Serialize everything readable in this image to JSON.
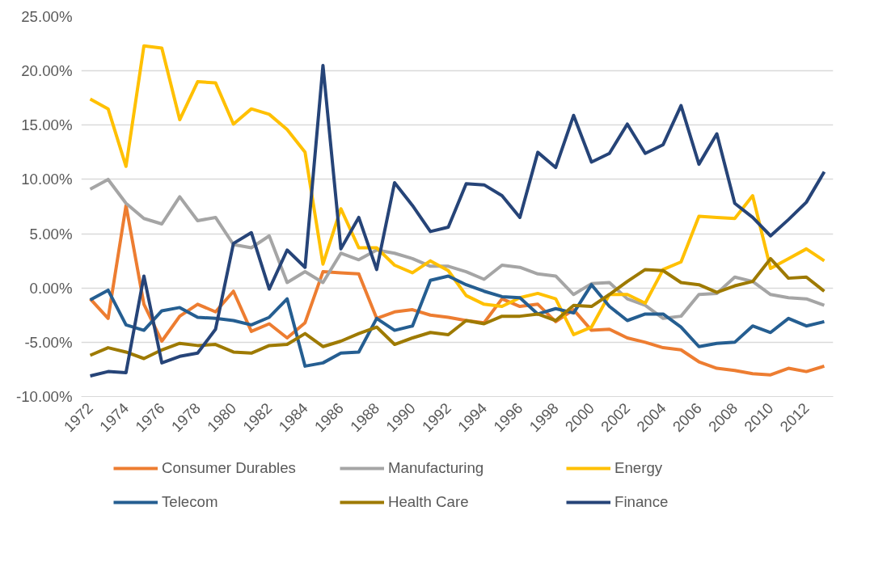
{
  "chart_data": {
    "type": "line",
    "x": [
      1972,
      1973,
      1974,
      1975,
      1976,
      1977,
      1978,
      1979,
      1980,
      1981,
      1982,
      1983,
      1984,
      1985,
      1986,
      1987,
      1988,
      1989,
      1990,
      1991,
      1992,
      1993,
      1994,
      1995,
      1996,
      1997,
      1998,
      1999,
      2000,
      2001,
      2002,
      2003,
      2004,
      2005,
      2006,
      2007,
      2008,
      2009,
      2010,
      2011,
      2012,
      2013
    ],
    "series": [
      {
        "name": "Consumer Durables",
        "color": "#ed7d31",
        "values": [
          -1.0,
          -2.8,
          7.6,
          -1.5,
          -4.9,
          -2.6,
          -1.5,
          -2.2,
          -0.3,
          -4.0,
          -3.3,
          -4.6,
          -3.2,
          1.5,
          1.4,
          1.3,
          -2.8,
          -2.2,
          -2.0,
          -2.5,
          -2.7,
          -3.0,
          -3.2,
          -1.0,
          -1.7,
          -1.5,
          -3.1,
          -2.0,
          -3.9,
          -3.8,
          -4.6,
          -5.0,
          -5.5,
          -5.7,
          -6.8,
          -7.4,
          -7.6,
          -7.9,
          -8.0,
          -7.4,
          -7.7,
          -7.2
        ]
      },
      {
        "name": "Manufacturing",
        "color": "#a5a5a5",
        "values": [
          9.1,
          10.0,
          7.8,
          6.4,
          5.9,
          8.4,
          6.2,
          6.5,
          4.0,
          3.7,
          4.8,
          0.5,
          1.5,
          0.5,
          3.2,
          2.6,
          3.5,
          3.2,
          2.7,
          2.0,
          2.0,
          1.5,
          0.8,
          2.1,
          1.9,
          1.3,
          1.1,
          -0.6,
          0.4,
          0.5,
          -1.0,
          -1.6,
          -2.8,
          -2.6,
          -0.6,
          -0.5,
          1.0,
          0.6,
          -0.6,
          -0.9,
          -1.0,
          -1.6
        ]
      },
      {
        "name": "Energy",
        "color": "#ffc000",
        "values": [
          17.4,
          16.5,
          11.2,
          22.3,
          22.1,
          15.5,
          19.0,
          18.9,
          15.1,
          16.5,
          16.0,
          14.6,
          12.5,
          2.2,
          7.3,
          3.7,
          3.7,
          2.1,
          1.4,
          2.5,
          1.6,
          -0.7,
          -1.5,
          -1.7,
          -0.9,
          -0.5,
          -1.0,
          -4.3,
          -3.6,
          -0.6,
          -0.6,
          -1.4,
          1.7,
          2.4,
          6.6,
          6.5,
          6.4,
          8.5,
          1.8,
          2.7,
          3.6,
          2.5
        ]
      },
      {
        "name": "Telecom",
        "color": "#255e91",
        "values": [
          -1.1,
          -0.2,
          -3.4,
          -3.9,
          -2.1,
          -1.8,
          -2.7,
          -2.8,
          -3.0,
          -3.4,
          -2.7,
          -1.0,
          -7.2,
          -6.9,
          -6.0,
          -5.9,
          -2.8,
          -3.9,
          -3.5,
          0.7,
          1.1,
          0.3,
          -0.3,
          -0.8,
          -0.9,
          -2.4,
          -1.9,
          -2.3,
          0.3,
          -1.7,
          -3.0,
          -2.4,
          -2.4,
          -3.6,
          -5.4,
          -5.1,
          -5.0,
          -3.5,
          -4.1,
          -2.8,
          -3.5,
          -3.1
        ]
      },
      {
        "name": "Health Care",
        "color": "#9e7a00",
        "values": [
          -6.2,
          -5.5,
          -5.9,
          -6.5,
          -5.7,
          -5.1,
          -5.3,
          -5.2,
          -5.9,
          -6.0,
          -5.3,
          -5.2,
          -4.2,
          -5.4,
          -4.9,
          -4.2,
          -3.6,
          -5.2,
          -4.6,
          -4.1,
          -4.3,
          -3.0,
          -3.3,
          -2.6,
          -2.6,
          -2.4,
          -3.0,
          -1.6,
          -1.7,
          -0.6,
          0.6,
          1.7,
          1.6,
          0.5,
          0.3,
          -0.4,
          0.2,
          0.6,
          2.7,
          0.9,
          1.0,
          -0.3
        ]
      },
      {
        "name": "Finance",
        "color": "#264478",
        "values": [
          -8.1,
          -7.7,
          -7.8,
          1.1,
          -6.9,
          -6.3,
          -6.0,
          -3.8,
          4.1,
          5.1,
          -0.1,
          3.5,
          1.9,
          20.5,
          3.6,
          6.5,
          1.7,
          9.7,
          7.6,
          5.2,
          5.6,
          9.6,
          9.5,
          8.5,
          6.5,
          12.5,
          11.1,
          15.9,
          11.6,
          12.4,
          15.1,
          12.4,
          13.2,
          16.8,
          11.4,
          14.2,
          7.8,
          6.5,
          4.8,
          6.3,
          7.9,
          10.7
        ]
      }
    ],
    "xlim": [
      1971.5,
      2013.5
    ],
    "xticks": [
      1972,
      1974,
      1976,
      1978,
      1980,
      1982,
      1984,
      1986,
      1988,
      1990,
      1992,
      1994,
      1996,
      1998,
      2000,
      2002,
      2004,
      2006,
      2008,
      2010,
      2012
    ],
    "ylim": [
      -10,
      25
    ],
    "yticks": [
      {
        "value": -10,
        "label": "-10.00%"
      },
      {
        "value": -5,
        "label": "-5.00%"
      },
      {
        "value": 0,
        "label": "0.00%"
      },
      {
        "value": 5,
        "label": "5.00%"
      },
      {
        "value": 10,
        "label": "10.00%"
      },
      {
        "value": 15,
        "label": "15.00%"
      },
      {
        "value": 20,
        "label": "20.00%"
      },
      {
        "value": 25,
        "label": "25.00%"
      }
    ],
    "grid": "y",
    "legend": "bottom",
    "marker": "none",
    "line_style": "solid"
  }
}
